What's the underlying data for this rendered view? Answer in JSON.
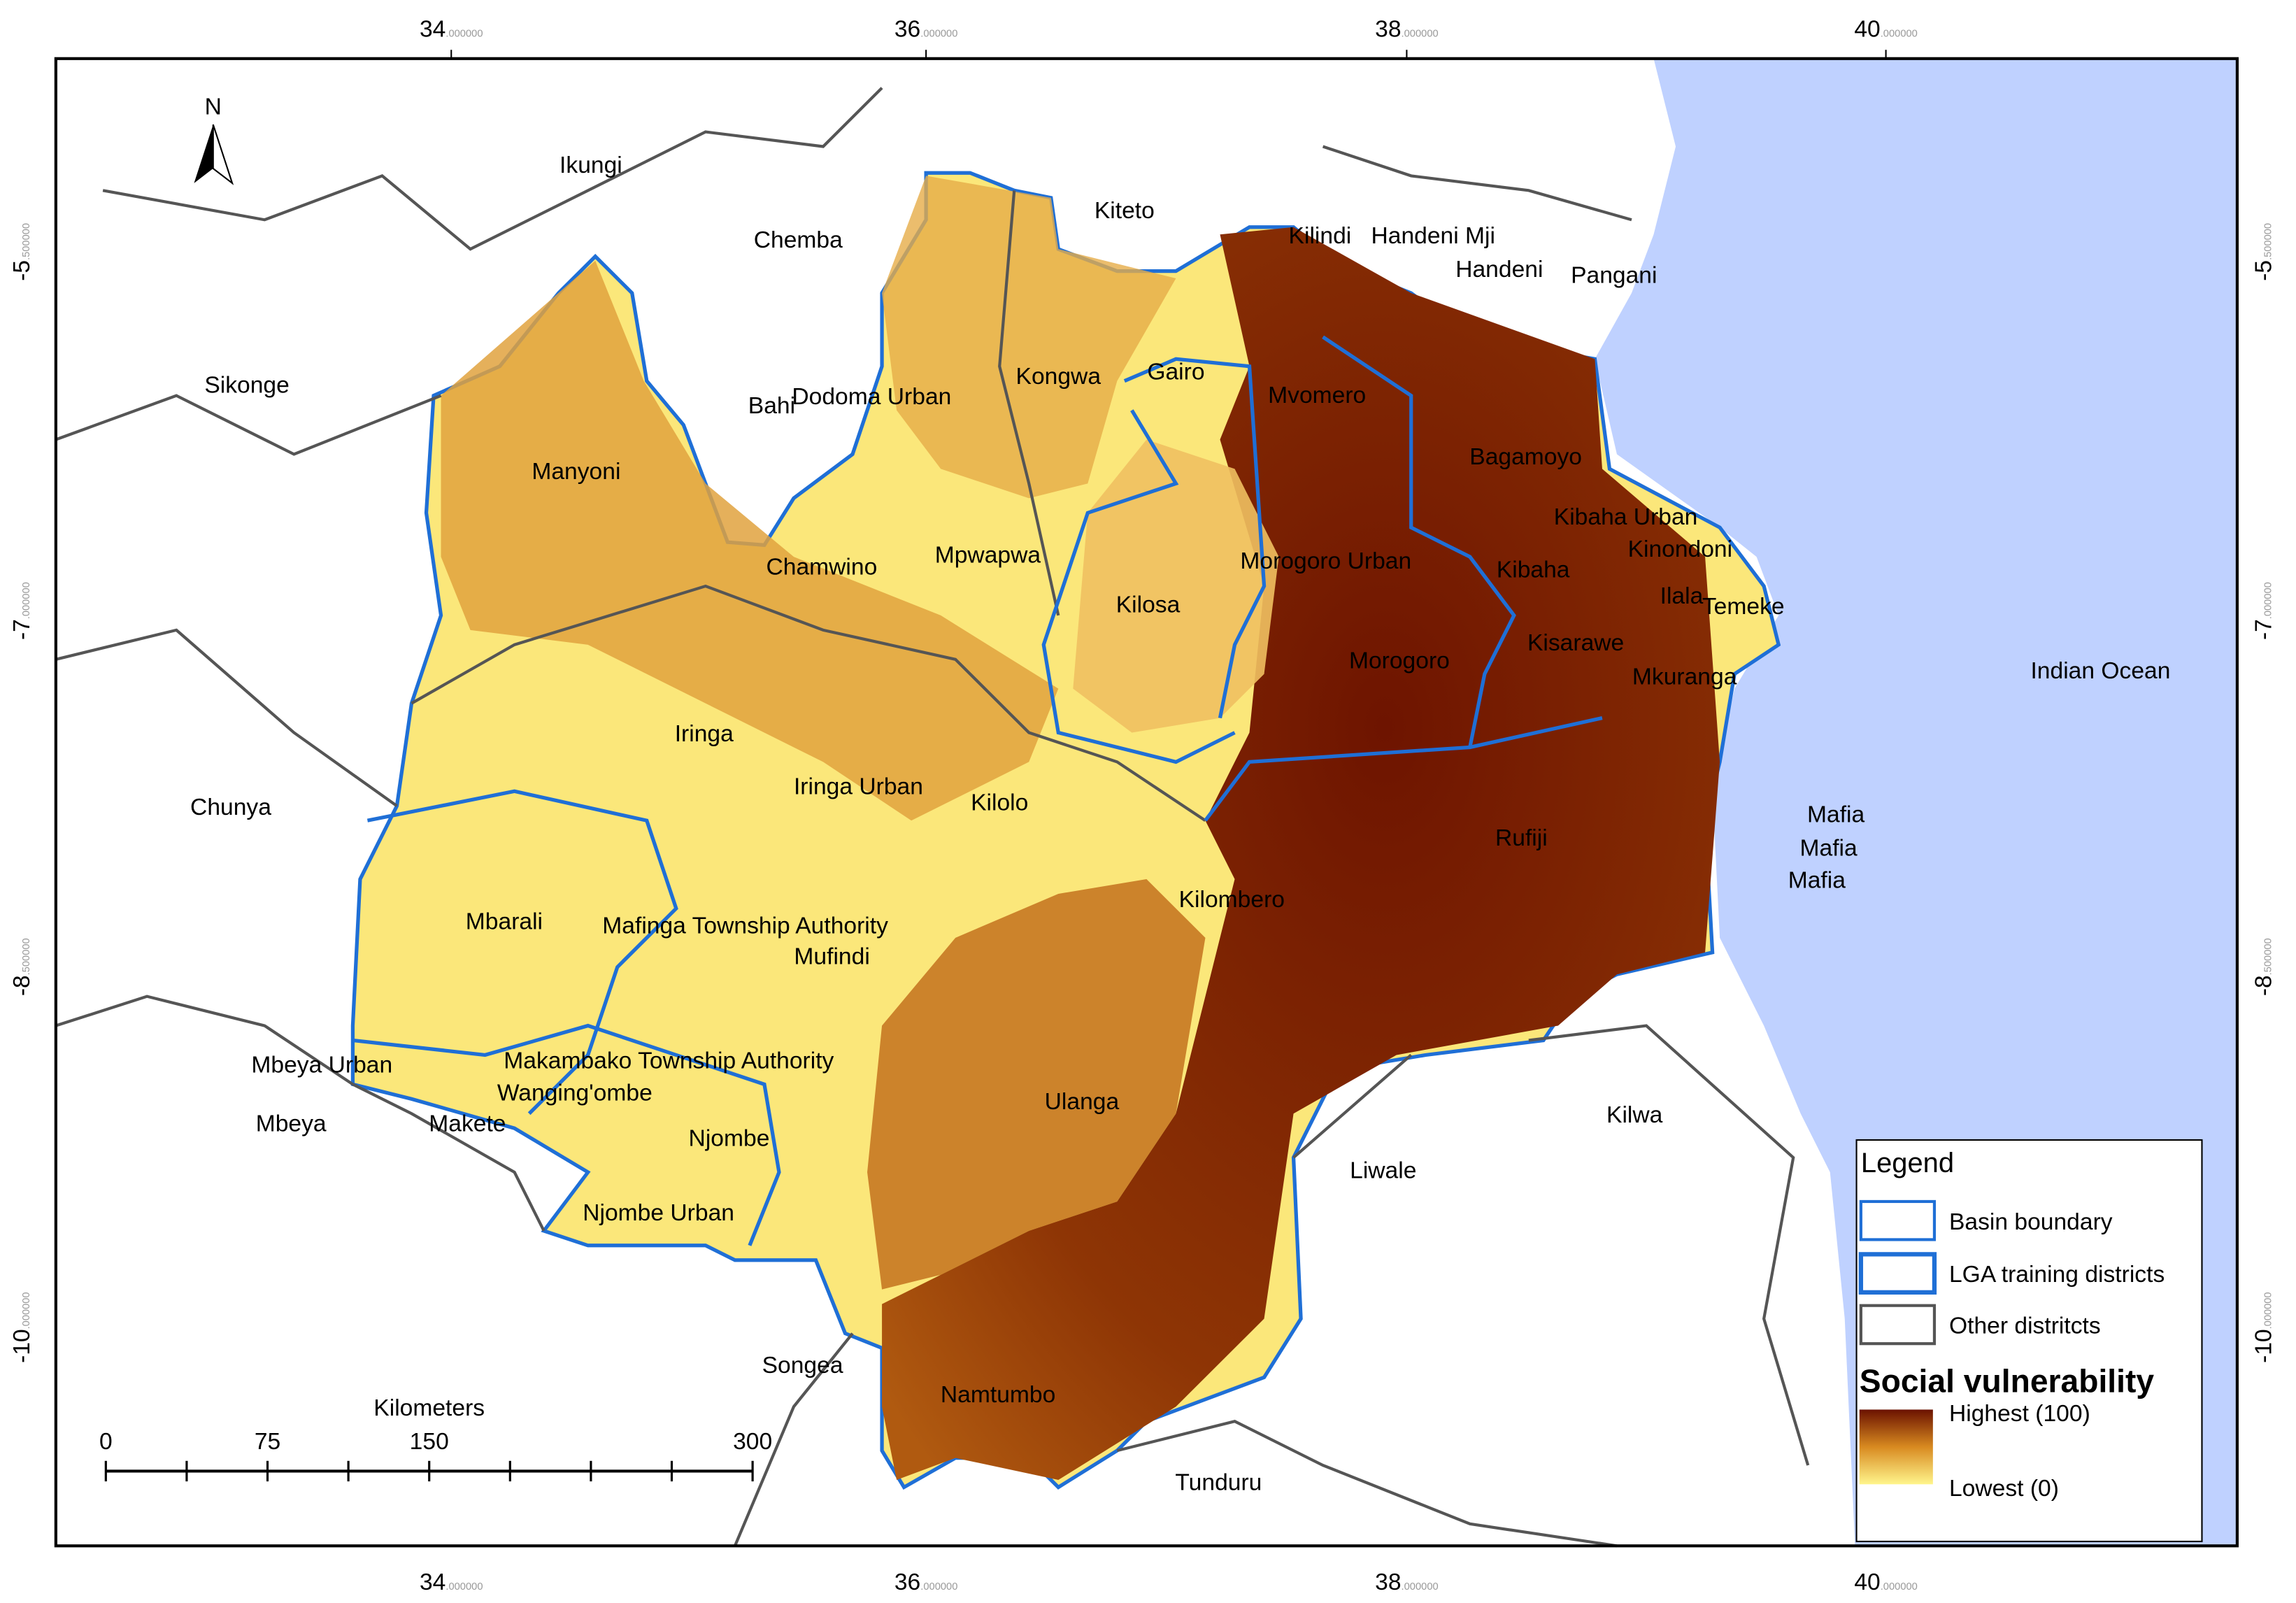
{
  "map": {
    "north_label": "N",
    "ocean_label": "Indian Ocean",
    "longitude_labels": [
      {
        "degrees": "34",
        "decimals": ".000000"
      },
      {
        "degrees": "36",
        "decimals": ".000000"
      },
      {
        "degrees": "38",
        "decimals": ".000000"
      },
      {
        "degrees": "40",
        "decimals": ".000000"
      }
    ],
    "latitude_labels": [
      {
        "degrees": "-5",
        "decimals": ".500000"
      },
      {
        "degrees": "-7",
        "decimals": ".000000"
      },
      {
        "degrees": "-8",
        "decimals": ".500000"
      },
      {
        "degrees": "-10",
        "decimals": ".000000"
      }
    ],
    "districts": [
      "Ikungi",
      "Chemba",
      "Kiteto",
      "Kilindi",
      "Handeni Mji",
      "Handeni",
      "Pangani",
      "Sikonge",
      "Bahi",
      "Dodoma Urban",
      "Kongwa",
      "Gairo",
      "Mvomero",
      "Bagamoyo",
      "Manyoni",
      "Chamwino",
      "Mpwapwa",
      "Morogoro Urban",
      "Kibaha Urban",
      "Kinondoni",
      "Kibaha",
      "Ilala",
      "Temeke",
      "Kilosa",
      "Morogoro",
      "Kisarawe",
      "Mkuranga",
      "Iringa",
      "Chunya",
      "Iringa Urban",
      "Kilolo",
      "Rufiji",
      "Mafia",
      "Mafia",
      "Mafia",
      "Mbarali",
      "Mafinga Township Authority",
      "Mufindi",
      "Kilombero",
      "Mbeya Urban",
      "Makambako Township Authority",
      "Wanging'ombe",
      "Mbeya",
      "Makete",
      "Njombe",
      "Ulanga",
      "Liwale",
      "Kilwa",
      "Njombe Urban",
      "Songea",
      "Namtumbo",
      "Tunduru"
    ],
    "scale_bar": {
      "unit": "Kilometers",
      "ticks": [
        0,
        75,
        150,
        300
      ]
    }
  },
  "legend": {
    "title": "Legend",
    "items": [
      "Basin boundary",
      "LGA training districts",
      "Other distritcts"
    ],
    "ramp_title": "Social vulnerability",
    "high_label": "Highest (100)",
    "low_label": "Lowest (0)"
  }
}
